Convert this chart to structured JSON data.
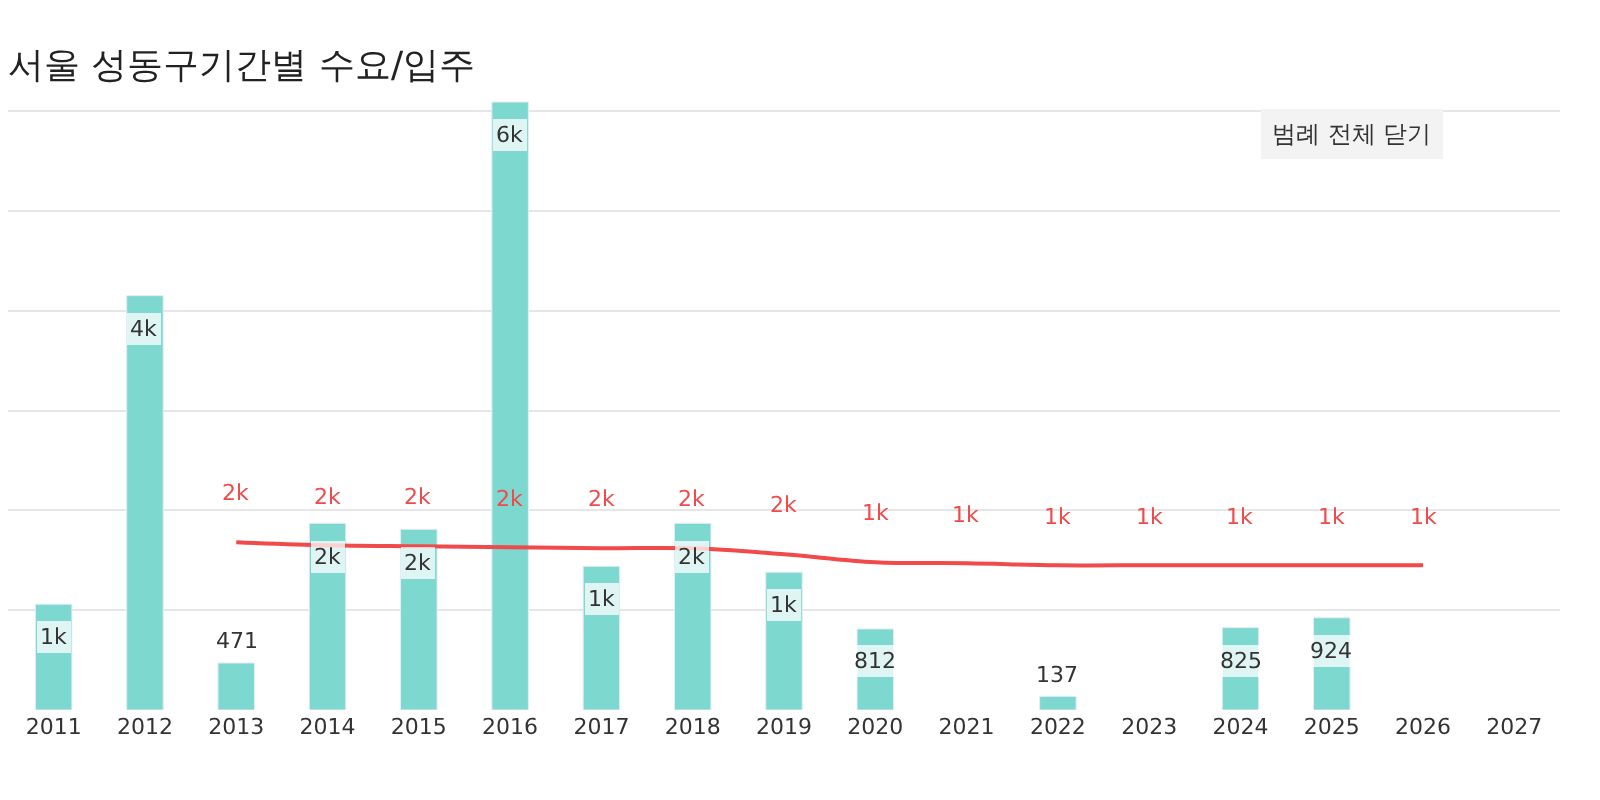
{
  "chart_data": {
    "type": "bar",
    "title": "서울 성동구기간별 수요/입주",
    "categories": [
      "2011",
      "2012",
      "2013",
      "2014",
      "2015",
      "2016",
      "2017",
      "2018",
      "2019",
      "2020",
      "2021",
      "2022",
      "2023",
      "2024",
      "2025",
      "2026",
      "2027"
    ],
    "series": [
      {
        "color": "#7dd8cf",
        "values": [
          1060,
          4150,
          471,
          1870,
          1810,
          6090,
          1440,
          1870,
          1380,
          812,
          null,
          137,
          null,
          825,
          924,
          null,
          null
        ],
        "value_labels": [
          "1k",
          "4k",
          "471",
          "2k",
          "2k",
          "6k",
          "1k",
          "2k",
          "1k",
          "812",
          null,
          "137",
          null,
          "825",
          "924",
          null,
          null
        ]
      },
      {
        "type": "line",
        "color": "#f04a4a",
        "values": [
          null,
          null,
          1680,
          1650,
          1640,
          1630,
          1620,
          1620,
          1560,
          1480,
          1470,
          1450,
          1450,
          1450,
          1450,
          1450,
          null
        ],
        "value_labels": [
          null,
          null,
          "2k",
          "2k",
          "2k",
          "2k",
          "2k",
          "2k",
          "2k",
          "1k",
          "1k",
          "1k",
          "1k",
          "1k",
          "1k",
          "1k",
          null
        ]
      }
    ],
    "tick_labels": "x",
    "grid": "y",
    "annotations": [
      "범례 전체 닫기"
    ]
  }
}
